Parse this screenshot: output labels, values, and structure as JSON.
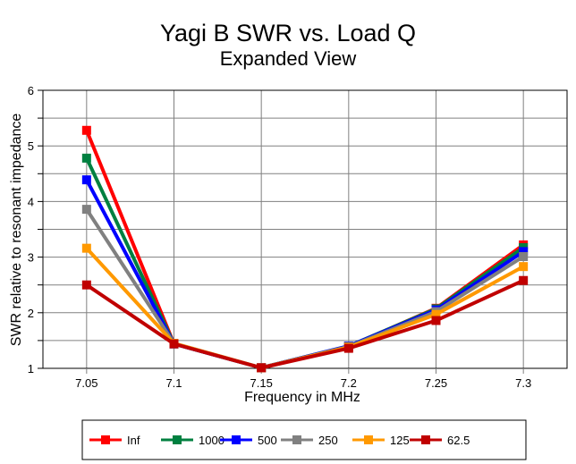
{
  "chart_data": {
    "type": "line",
    "title": "Yagi B SWR vs. Load Q",
    "subtitle": "Expanded View",
    "xlabel": "Frequency in MHz",
    "ylabel": "SWR relative to resonant impedance",
    "xlim": [
      7.025,
      7.325
    ],
    "ylim": [
      1,
      6
    ],
    "x": [
      7.05,
      7.1,
      7.15,
      7.2,
      7.25,
      7.3
    ],
    "x_tick_labels": [
      "7.05",
      "7.1",
      "7.15",
      "7.2",
      "7.25",
      "7.3"
    ],
    "y_ticks": [
      1,
      2,
      3,
      4,
      5,
      6
    ],
    "y_tick_labels": [
      "1",
      "2",
      "3",
      "4",
      "5",
      "6"
    ],
    "y_minor_gridlines": [
      1.5,
      2.5,
      3.5,
      4.5,
      5.5
    ],
    "grid": true,
    "legend_position": "bottom",
    "series": [
      {
        "name": "Inf",
        "color": "#FF0000",
        "values": [
          5.28,
          1.44,
          1.01,
          1.39,
          2.08,
          3.22
        ]
      },
      {
        "name": "1000",
        "color": "#008040",
        "values": [
          4.78,
          1.44,
          1.01,
          1.4,
          2.07,
          3.17
        ]
      },
      {
        "name": "500",
        "color": "#0000FF",
        "values": [
          4.39,
          1.44,
          1.01,
          1.4,
          2.05,
          3.1
        ]
      },
      {
        "name": "250",
        "color": "#808080",
        "values": [
          3.86,
          1.45,
          1.01,
          1.39,
          2.02,
          3.01
        ]
      },
      {
        "name": "125",
        "color": "#FF9900",
        "values": [
          3.16,
          1.45,
          1.01,
          1.38,
          1.97,
          2.83
        ]
      },
      {
        "name": "62.5",
        "color": "#C00000",
        "values": [
          2.5,
          1.44,
          1.01,
          1.36,
          1.86,
          2.58
        ]
      }
    ]
  }
}
